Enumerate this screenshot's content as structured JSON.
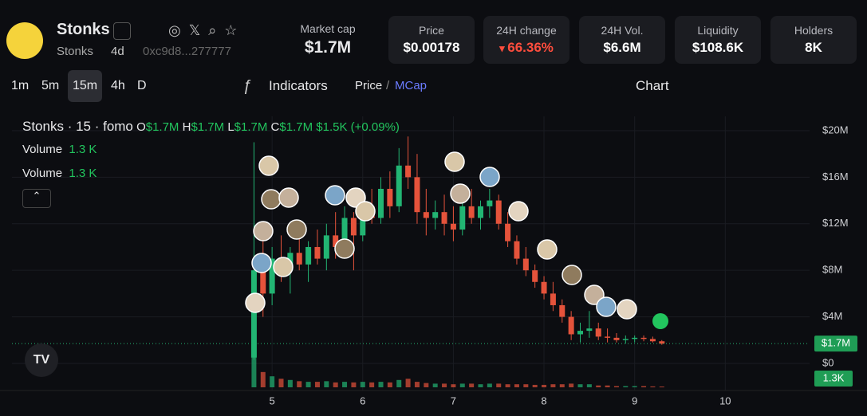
{
  "header": {
    "token_name": "Stonks",
    "ticker": "Stonks",
    "age": "4d",
    "address": "0xc9d8...277777",
    "stats": [
      {
        "label": "Market cap",
        "value": "$1.7M"
      },
      {
        "label": "Price",
        "value": "$0.00178"
      },
      {
        "label": "24H change",
        "value": "66.36%"
      },
      {
        "label": "24H Vol.",
        "value": "$6.6M"
      },
      {
        "label": "Liquidity",
        "value": "$108.6K"
      },
      {
        "label": "Holders",
        "value": "8K"
      }
    ]
  },
  "toolbar": {
    "intervals": [
      "1m",
      "5m",
      "15m",
      "4h",
      "D"
    ],
    "indicators": "Indicators",
    "price": "Price",
    "separator": "/",
    "mcap": "MCap",
    "chart": "Chart"
  },
  "legend": {
    "title": "Stonks · 15 · fomo",
    "ohlc": [
      {
        "key": "O",
        "value": "$1.7M"
      },
      {
        "key": "H",
        "value": "$1.7M"
      },
      {
        "key": "L",
        "value": "$1.7M"
      },
      {
        "key": "C",
        "value": "$1.7M"
      }
    ],
    "change": "$1.5K (+0.09%)",
    "volumes": [
      {
        "label": "Volume",
        "value": "1.3 K"
      },
      {
        "label": "Volume",
        "value": "1.3 K"
      }
    ]
  },
  "chart_data": {
    "type": "candlestick",
    "x": [
      4.8,
      4.9,
      5.0,
      5.1,
      5.2,
      5.3,
      5.4,
      5.5,
      5.6,
      5.7,
      5.8,
      5.9,
      6.0,
      6.1,
      6.2,
      6.3,
      6.4,
      6.5,
      6.6,
      6.7,
      6.8,
      6.9,
      7.0,
      7.1,
      7.2,
      7.3,
      7.4,
      7.5,
      7.6,
      7.7,
      7.8,
      7.9,
      8.0,
      8.1,
      8.2,
      8.3,
      8.4,
      8.5,
      8.6,
      8.7,
      8.8,
      8.9,
      9.0,
      9.1,
      9.2,
      9.3
    ],
    "open": [
      0.5,
      8,
      6,
      9,
      8,
      9.5,
      8.5,
      10,
      9,
      11,
      10,
      12.5,
      11,
      13.5,
      12.5,
      15,
      13.5,
      17,
      16,
      13,
      12.5,
      13,
      12,
      11.5,
      13.5,
      12.5,
      13.5,
      14,
      12,
      10.5,
      9,
      8,
      7,
      6,
      5,
      4,
      2.5,
      2.8,
      3,
      2.3,
      2.2,
      2,
      2.1,
      2.2,
      2.1,
      1.9
    ],
    "high": [
      19,
      12,
      10,
      11,
      10,
      11,
      10.5,
      11.5,
      12,
      13,
      13.5,
      13,
      14,
      15,
      16,
      16.5,
      18.5,
      19.5,
      18,
      15,
      14,
      14.5,
      13.5,
      14,
      15,
      14,
      15,
      14.5,
      13,
      11,
      10,
      8.5,
      7.5,
      7,
      5.5,
      4.5,
      3.5,
      4.5,
      3.5,
      3,
      2.6,
      2.4,
      2.4,
      2.4,
      2.3,
      2
    ],
    "low": [
      0.3,
      4,
      5,
      7,
      6,
      8,
      7,
      8.5,
      8,
      9,
      9.5,
      8,
      10.5,
      12,
      12,
      12.5,
      13,
      15,
      12,
      11,
      11.5,
      11,
      10.5,
      11,
      12,
      11.5,
      12.5,
      11.5,
      10,
      8.5,
      7.5,
      6.5,
      5.5,
      4.5,
      3.5,
      2,
      1.8,
      2.2,
      2,
      1.8,
      1.8,
      1.7,
      1.8,
      1.9,
      1.8,
      1.6
    ],
    "close": [
      8,
      6,
      9,
      8,
      9.5,
      8.5,
      10,
      9,
      11,
      10,
      12.5,
      11,
      13.5,
      12.5,
      15,
      13.5,
      17,
      16,
      13,
      12.5,
      13,
      12,
      11.5,
      13.5,
      12.5,
      13.5,
      14,
      12,
      10.5,
      9,
      8,
      7,
      6,
      5,
      4,
      2.5,
      2.8,
      3,
      2.3,
      2.2,
      2,
      2.1,
      2.2,
      2.1,
      1.9,
      1.7
    ],
    "volume": [
      60,
      25,
      18,
      14,
      12,
      10,
      9,
      9,
      10,
      8,
      9,
      8,
      9,
      8,
      9,
      8,
      12,
      14,
      9,
      7,
      6,
      6,
      5,
      6,
      6,
      5,
      6,
      6,
      5,
      5,
      5,
      4,
      4,
      5,
      5,
      6,
      5,
      5,
      3,
      3,
      2,
      2,
      2,
      2,
      1.5,
      1.3
    ],
    "volume_ylim": [
      0,
      60
    ],
    "xlim": [
      2.13,
      10.93
    ],
    "xticks": [
      5,
      6,
      7,
      8,
      9,
      10
    ],
    "ylim": [
      -2.33,
      21.23
    ],
    "yticks": [
      {
        "value": 0,
        "label": "$0"
      },
      {
        "value": 4,
        "label": "$4M"
      },
      {
        "value": 8,
        "label": "$8M"
      },
      {
        "value": 12,
        "label": "$12M"
      },
      {
        "value": 16,
        "label": "$16M"
      },
      {
        "value": 20,
        "label": "$20M"
      }
    ],
    "current_price": {
      "value": 1.7,
      "label": "$1.7M"
    },
    "current_volume": "1.3K",
    "up_color": "#22b573",
    "down_color": "#e5533b",
    "grid": true
  }
}
